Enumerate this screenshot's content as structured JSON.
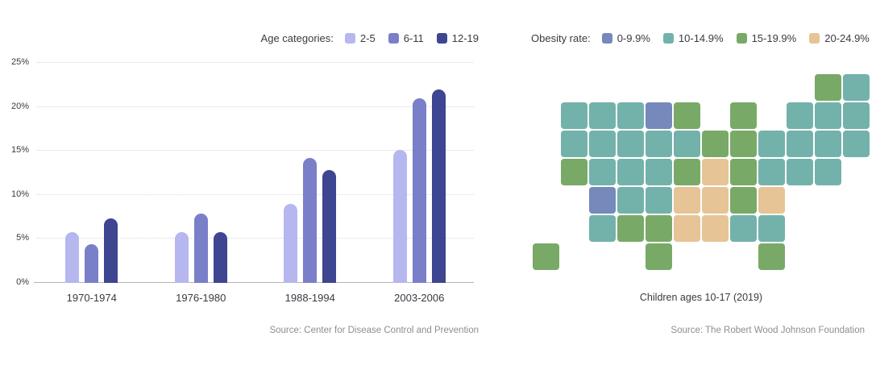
{
  "left_panel": {
    "legend_label": "Age categories:",
    "source": "Source: Center for Disease Control and Prevention"
  },
  "right_panel": {
    "legend_label": "Obesity rate:",
    "caption": "Children ages 10-17 (2019)",
    "source": "Source: The Robert Wood Johnson Foundation"
  },
  "chart_data": [
    {
      "type": "bar",
      "title": "",
      "xlabel": "",
      "ylabel": "",
      "categories": [
        "1970-1974",
        "1976-1980",
        "1988-1994",
        "2003-2006"
      ],
      "series": [
        {
          "name": "2-5",
          "color": "#b6b7ef",
          "values": [
            5.8,
            5.8,
            9.0,
            15.1
          ]
        },
        {
          "name": "6-11",
          "color": "#7a7fc9",
          "values": [
            4.4,
            7.9,
            14.2,
            21.0
          ]
        },
        {
          "name": "12-19",
          "color": "#3e4591",
          "values": [
            7.3,
            5.8,
            12.8,
            22.0
          ]
        }
      ],
      "yticks": [
        "0%",
        "5%",
        "10%",
        "15%",
        "20%",
        "25%"
      ],
      "ylim": [
        0,
        25
      ],
      "grid": "dotted-horizontal",
      "legend_position": "top-right"
    },
    {
      "type": "heatmap",
      "subtype": "us-state-choropleth",
      "title": "",
      "legend_position": "top",
      "legend": [
        {
          "label": "0-9.9%",
          "color": "#7589bb"
        },
        {
          "label": "10-14.9%",
          "color": "#73b2aa"
        },
        {
          "label": "15-19.9%",
          "color": "#79a967"
        },
        {
          "label": "20-24.9%",
          "color": "#e6c495"
        }
      ],
      "states": {
        "WA": "10-14.9%",
        "OR": "10-14.9%",
        "CA": "15-19.9%",
        "NV": "10-14.9%",
        "ID": "10-14.9%",
        "MT": "10-14.9%",
        "WY": "10-14.9%",
        "UT": "0-9.9%",
        "CO": "10-14.9%",
        "AZ": "10-14.9%",
        "NM": "15-19.9%",
        "AK": "15-19.9%",
        "ND": "10-14.9%",
        "SD": "10-14.9%",
        "NE": "10-14.9%",
        "KS": "10-14.9%",
        "OK": "15-19.9%",
        "TX": "15-19.9%",
        "MN": "0-9.9%",
        "IA": "10-14.9%",
        "MO": "15-19.9%",
        "AR": "20-24.9%",
        "LA": "20-24.9%",
        "WI": "15-19.9%",
        "IL": "10-14.9%",
        "MI": "15-19.9%",
        "IN": "15-19.9%",
        "OH": "15-19.9%",
        "KY": "20-24.9%",
        "TN": "20-24.9%",
        "MS": "20-24.9%",
        "AL": "10-14.9%",
        "GA": "10-14.9%",
        "FL": "15-19.9%",
        "SC": "20-24.9%",
        "NC": "15-19.9%",
        "VA": "10-14.9%",
        "WV": "15-19.9%",
        "MD": "10-14.9%",
        "DE": "10-14.9%",
        "PA": "10-14.9%",
        "NJ": "10-14.9%",
        "NY": "10-14.9%",
        "CT": "10-14.9%",
        "RI": "10-14.9%",
        "MA": "10-14.9%",
        "VT": "15-19.9%",
        "NH": "10-14.9%",
        "ME": "10-14.9%"
      }
    }
  ]
}
